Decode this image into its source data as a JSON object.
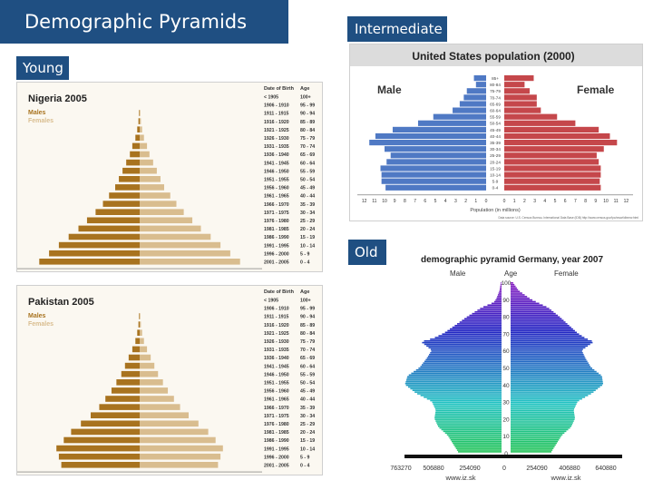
{
  "slide": {
    "title": "Demographic Pyramids",
    "young_label": "Young",
    "intermediate_label": "Intermediate",
    "old_label": "Old"
  },
  "colors": {
    "label_bg": "#1f4f82",
    "tan_male": "#a8731f",
    "tan_female": "#d9bd8f",
    "us_male": "#4f79c4",
    "us_female": "#c5474b",
    "us_title_bg": "#dcdcdc"
  },
  "chart_data": [
    {
      "id": "nigeria",
      "type": "bar",
      "title": "Nigeria 2005",
      "legend": [
        "Males",
        "Females"
      ],
      "date_of_birth_header": "Date of Birth",
      "age_header": "Age",
      "birth_years": [
        "< 1905",
        "1906 - 1910",
        "1911 - 1915",
        "1916 - 1920",
        "1921 - 1925",
        "1926 - 1930",
        "1931 - 1935",
        "1936 - 1940",
        "1941 - 1945",
        "1946 - 1950",
        "1951 - 1955",
        "1956 - 1960",
        "1961 - 1965",
        "1966 - 1970",
        "1971 - 1975",
        "1976 - 1980",
        "1981 - 1985",
        "1986 - 1990",
        "1991 - 1995",
        "1996 - 2000",
        "2001 - 2005"
      ],
      "age_groups": [
        "100+",
        "95 - 99",
        "90 - 94",
        "85 - 89",
        "80 - 84",
        "75 - 79",
        "70 - 74",
        "65 - 69",
        "60 - 64",
        "55 - 59",
        "50 - 54",
        "45 - 49",
        "40 - 44",
        "35 - 39",
        "30 - 34",
        "25 - 29",
        "20 - 24",
        "15 - 19",
        "10 - 14",
        "5 - 9",
        "0 - 4"
      ],
      "male": [
        0,
        0,
        0.05,
        0.1,
        0.2,
        0.35,
        0.6,
        0.8,
        1.1,
        1.4,
        1.7,
        2.0,
        2.5,
        3.0,
        3.6,
        4.3,
        5.0,
        5.8,
        6.6,
        7.4,
        8.2
      ],
      "female": [
        0,
        0,
        0.05,
        0.1,
        0.2,
        0.35,
        0.6,
        0.8,
        1.1,
        1.4,
        1.7,
        2.0,
        2.5,
        3.0,
        3.6,
        4.3,
        5.0,
        5.8,
        6.6,
        7.4,
        8.2
      ],
      "x_ticks": [
        "10",
        "8",
        "6",
        "4",
        "2",
        "0",
        "2",
        "4",
        "6",
        "8",
        "10"
      ],
      "xlabel": "Percent of Total Population"
    },
    {
      "id": "pakistan",
      "type": "bar",
      "title": "Pakistan 2005",
      "legend": [
        "Males",
        "Females"
      ],
      "date_of_birth_header": "Date of Birth",
      "age_header": "Age",
      "birth_years": [
        "< 1905",
        "1906 - 1910",
        "1911 - 1915",
        "1916 - 1920",
        "1921 - 1925",
        "1926 - 1930",
        "1931 - 1935",
        "1936 - 1940",
        "1941 - 1945",
        "1946 - 1950",
        "1951 - 1955",
        "1956 - 1960",
        "1961 - 1965",
        "1966 - 1970",
        "1971 - 1975",
        "1976 - 1980",
        "1981 - 1985",
        "1986 - 1990",
        "1991 - 1995",
        "1996 - 2000",
        "2001 - 2005"
      ],
      "age_groups": [
        "100+",
        "95 - 99",
        "90 - 94",
        "85 - 89",
        "80 - 84",
        "75 - 79",
        "70 - 74",
        "65 - 69",
        "60 - 64",
        "55 - 59",
        "50 - 54",
        "45 - 49",
        "40 - 44",
        "35 - 39",
        "30 - 34",
        "25 - 29",
        "20 - 24",
        "15 - 19",
        "10 - 14",
        "5 - 9",
        "0 - 4"
      ],
      "male": [
        0,
        0,
        0.05,
        0.1,
        0.2,
        0.35,
        0.6,
        0.9,
        1.2,
        1.5,
        1.9,
        2.3,
        2.8,
        3.3,
        4.0,
        4.8,
        5.6,
        6.2,
        6.8,
        6.6,
        6.4
      ],
      "female": [
        0,
        0,
        0.05,
        0.1,
        0.2,
        0.35,
        0.6,
        0.9,
        1.2,
        1.5,
        1.9,
        2.3,
        2.8,
        3.3,
        4.0,
        4.8,
        5.6,
        6.2,
        6.8,
        6.6,
        6.4
      ],
      "x_ticks": [
        "10",
        "8",
        "6",
        "4",
        "2",
        "0",
        "2",
        "4",
        "6",
        "8",
        "10"
      ],
      "xlabel": "Percent of Total Population"
    },
    {
      "id": "usa",
      "type": "bar",
      "title": "United States population (2000)",
      "male_label": "Male",
      "female_label": "Female",
      "age_groups": [
        "85+",
        "80-84",
        "75-79",
        "70-74",
        "65-69",
        "60-64",
        "55-59",
        "50-54",
        "45-49",
        "40-44",
        "35-39",
        "30-34",
        "25-29",
        "20-24",
        "15-19",
        "10-14",
        "5-9",
        "0-4"
      ],
      "male": [
        1.2,
        1.0,
        1.9,
        2.2,
        2.6,
        3.3,
        5.2,
        6.7,
        9.2,
        10.9,
        11.5,
        10.0,
        9.4,
        9.8,
        10.4,
        10.3,
        10.3,
        9.9
      ],
      "female": [
        2.9,
        2.0,
        2.5,
        3.2,
        3.2,
        3.6,
        5.2,
        7.0,
        9.3,
        10.4,
        11.1,
        9.8,
        9.1,
        9.3,
        9.5,
        9.5,
        9.4,
        9.5
      ],
      "x_ticks": [
        "12",
        "11",
        "10",
        "9",
        "8",
        "7",
        "6",
        "5",
        "4",
        "3",
        "2",
        "1",
        "0",
        "0",
        "1",
        "2",
        "3",
        "4",
        "5",
        "6",
        "7",
        "8",
        "9",
        "10",
        "11",
        "12"
      ],
      "xlabel": "Population (in millions)",
      "source_note": "Data source: U.S. Census Bureau, International Data Base (IDB) http://www.census.gov/ipc/www/idbnew.html"
    },
    {
      "id": "germany",
      "type": "bar",
      "title": "demographic pyramid Germany, year 2007",
      "male_label": "Male",
      "age_label": "Age",
      "female_label": "Female",
      "age_ticks": [
        "100",
        "90",
        "80",
        "70",
        "60",
        "50",
        "40",
        "30",
        "20",
        "10",
        "0"
      ],
      "ages_min": 0,
      "ages_max": 100,
      "male_profile": [
        [
          0,
          320
        ],
        [
          5,
          360
        ],
        [
          10,
          400
        ],
        [
          15,
          470
        ],
        [
          20,
          500
        ],
        [
          25,
          490
        ],
        [
          30,
          520
        ],
        [
          35,
          640
        ],
        [
          40,
          720
        ],
        [
          45,
          700
        ],
        [
          50,
          610
        ],
        [
          55,
          560
        ],
        [
          60,
          520
        ],
        [
          65,
          600
        ],
        [
          67,
          510
        ],
        [
          70,
          430
        ],
        [
          75,
          340
        ],
        [
          80,
          250
        ],
        [
          85,
          150
        ],
        [
          88,
          60
        ],
        [
          90,
          40
        ],
        [
          95,
          15
        ],
        [
          100,
          5
        ]
      ],
      "female_profile": [
        [
          0,
          300
        ],
        [
          5,
          340
        ],
        [
          10,
          380
        ],
        [
          15,
          450
        ],
        [
          20,
          480
        ],
        [
          25,
          470
        ],
        [
          30,
          500
        ],
        [
          35,
          610
        ],
        [
          40,
          690
        ],
        [
          45,
          680
        ],
        [
          50,
          600
        ],
        [
          55,
          560
        ],
        [
          60,
          530
        ],
        [
          65,
          620
        ],
        [
          67,
          560
        ],
        [
          70,
          500
        ],
        [
          75,
          430
        ],
        [
          80,
          360
        ],
        [
          85,
          280
        ],
        [
          88,
          200
        ],
        [
          90,
          150
        ],
        [
          95,
          60
        ],
        [
          100,
          15
        ]
      ],
      "x_ticks": [
        "763270",
        "506880",
        "254090",
        "0",
        "254090",
        "406880",
        "640880"
      ],
      "source_note": "www.iz.sk"
    }
  ]
}
